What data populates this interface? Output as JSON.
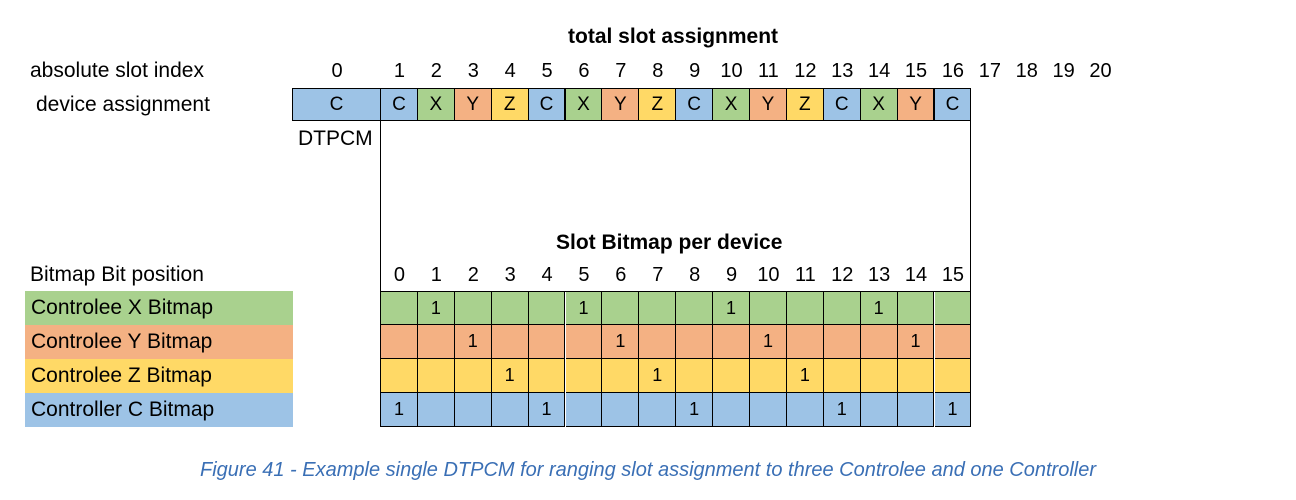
{
  "colors": {
    "C": "#9dc3e6",
    "X": "#a9d18e",
    "Y": "#f4b183",
    "Z": "#ffd966",
    "caption": "#3a6fb5"
  },
  "top_title": "total slot assignment",
  "row_labels": {
    "absolute": "absolute slot index",
    "device": "device assignment",
    "bitpos": "Bitmap Bit position"
  },
  "dtpcm_slot": {
    "index": "0",
    "assignment": "C",
    "label": "DTPCM"
  },
  "absolute_indices": [
    "1",
    "2",
    "3",
    "4",
    "5",
    "6",
    "7",
    "8",
    "9",
    "10",
    "11",
    "12",
    "13",
    "14",
    "15",
    "16",
    "17",
    "18",
    "19",
    "20"
  ],
  "assignments": [
    "C",
    "X",
    "Y",
    "Z",
    "C",
    "X",
    "Y",
    "Z",
    "C",
    "X",
    "Y",
    "Z",
    "C",
    "X",
    "Y",
    "C"
  ],
  "bitmap_title": "Slot Bitmap per device",
  "bit_positions": [
    "0",
    "1",
    "2",
    "3",
    "4",
    "5",
    "6",
    "7",
    "8",
    "9",
    "10",
    "11",
    "12",
    "13",
    "14",
    "15"
  ],
  "bitmaps": [
    {
      "device": "X",
      "label": "Controlee X Bitmap",
      "bits": [
        "",
        "1",
        "",
        "",
        "",
        "1",
        "",
        "",
        "",
        "1",
        "",
        "",
        "",
        "1",
        "",
        ""
      ]
    },
    {
      "device": "Y",
      "label": "Controlee Y Bitmap",
      "bits": [
        "",
        "",
        "1",
        "",
        "",
        "",
        "1",
        "",
        "",
        "",
        "1",
        "",
        "",
        "",
        "1",
        ""
      ]
    },
    {
      "device": "Z",
      "label": "Controlee Z Bitmap",
      "bits": [
        "",
        "",
        "",
        "1",
        "",
        "",
        "",
        "1",
        "",
        "",
        "",
        "1",
        "",
        "",
        "",
        ""
      ]
    },
    {
      "device": "C",
      "label": "Controller C Bitmap",
      "bits": [
        "1",
        "",
        "",
        "",
        "1",
        "",
        "",
        "",
        "1",
        "",
        "",
        "",
        "1",
        "",
        "",
        "1"
      ]
    }
  ],
  "caption": "Figure 41 - Example single DTPCM for ranging slot assignment to three Controlee and one Controller"
}
